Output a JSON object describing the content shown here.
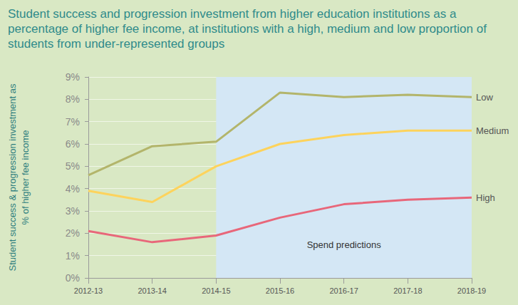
{
  "chart_data": {
    "type": "line",
    "title": "Student success and progression investment from higher education institutions as a percentage of higher fee income, at institutions with a high, medium and low proportion of students from under-represented groups",
    "y_label": "Student success & progression investment as\n% of higher fee income",
    "categories": [
      "2012-13",
      "2013-14",
      "2014-15",
      "2015-16",
      "2016-17",
      "2017-18",
      "2018-19"
    ],
    "series": [
      {
        "name": "Low",
        "color": "#b3b56b",
        "values": [
          4.6,
          5.9,
          6.1,
          8.3,
          8.1,
          8.2,
          8.1
        ]
      },
      {
        "name": "Medium",
        "color": "#fdd35c",
        "values": [
          3.9,
          3.4,
          5.0,
          6.0,
          6.4,
          6.6,
          6.6
        ]
      },
      {
        "name": "High",
        "color": "#e8677a",
        "values": [
          2.1,
          1.6,
          1.9,
          2.7,
          3.3,
          3.5,
          3.6
        ]
      }
    ],
    "ylim": [
      0,
      9
    ],
    "yticks": [
      {
        "value": 0,
        "label": "0%"
      },
      {
        "value": 1,
        "label": "1%"
      },
      {
        "value": 2,
        "label": "2%"
      },
      {
        "value": 3,
        "label": "3%"
      },
      {
        "value": 4,
        "label": "4%"
      },
      {
        "value": 5,
        "label": "5%"
      },
      {
        "value": 6,
        "label": "6%"
      },
      {
        "value": 7,
        "label": "7%"
      },
      {
        "value": 8,
        "label": "8%"
      },
      {
        "value": 9,
        "label": "9%"
      }
    ],
    "grid": true,
    "annotations": [
      {
        "text": "Spend predictions",
        "x_start": "2014-15",
        "x_end": "2018-19"
      }
    ]
  }
}
